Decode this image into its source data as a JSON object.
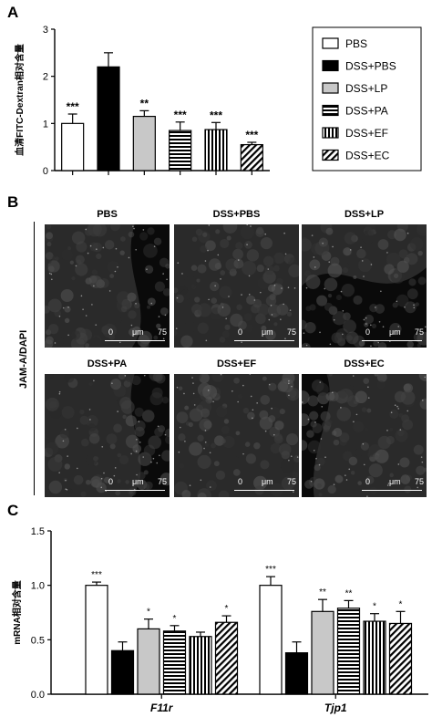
{
  "panels": {
    "a": "A",
    "b": "B",
    "c": "C"
  },
  "chart_a": {
    "type": "bar",
    "ylabel": "血清FITC-Dextran相对含量",
    "ylim": [
      0,
      3
    ],
    "yticks": [
      0,
      1,
      2,
      3
    ],
    "categories": [
      "PBS",
      "DSS+PBS",
      "DSS+LP",
      "DSS+PA",
      "DSS+EF",
      "DSS+EC"
    ],
    "values": [
      1.0,
      2.2,
      1.15,
      0.85,
      0.87,
      0.55
    ],
    "errors": [
      0.2,
      0.3,
      0.12,
      0.18,
      0.15,
      0.05
    ],
    "significance": [
      "***",
      "",
      "**",
      "***",
      "***",
      "***"
    ],
    "legend": [
      "PBS",
      "DSS+PBS",
      "DSS+LP",
      "DSS+PA",
      "DSS+EF",
      "DSS+EC"
    ]
  },
  "panel_b": {
    "ylabel": "JAM-A/DAPI",
    "images": [
      {
        "label": "PBS",
        "scale": [
          "0",
          "μm",
          "75"
        ]
      },
      {
        "label": "DSS+PBS",
        "scale": [
          "0",
          "μm",
          "75"
        ]
      },
      {
        "label": "DSS+LP",
        "scale": [
          "0",
          "μm",
          "75"
        ]
      },
      {
        "label": "DSS+PA",
        "scale": [
          "0",
          "μm",
          "75"
        ]
      },
      {
        "label": "DSS+EF",
        "scale": [
          "0",
          "μm",
          "75"
        ]
      },
      {
        "label": "DSS+EC",
        "scale": [
          "0",
          "μm",
          "75"
        ]
      }
    ]
  },
  "chart_c": {
    "type": "bar",
    "ylabel": "mRNA相对含量",
    "ylim": [
      0,
      1.5
    ],
    "yticks": [
      "0.0",
      "0.5",
      "1.0",
      "1.5"
    ],
    "ytick_values": [
      0,
      0.5,
      1.0,
      1.5
    ],
    "groups": [
      "F11r",
      "Tjp1"
    ],
    "series_patterns": [
      "PBS",
      "DSS+PBS",
      "DSS+LP",
      "DSS+PA",
      "DSS+EF",
      "DSS+EC"
    ],
    "values": [
      [
        1.0,
        0.4,
        0.6,
        0.58,
        0.53,
        0.66
      ],
      [
        1.0,
        0.38,
        0.76,
        0.79,
        0.67,
        0.65
      ]
    ],
    "errors": [
      [
        0.03,
        0.08,
        0.09,
        0.05,
        0.04,
        0.06
      ],
      [
        0.08,
        0.1,
        0.11,
        0.07,
        0.07,
        0.11
      ]
    ],
    "significance": [
      [
        "***",
        "",
        "*",
        "*",
        "",
        "*"
      ],
      [
        "***",
        "",
        "**",
        "**",
        "*",
        "*"
      ]
    ]
  }
}
